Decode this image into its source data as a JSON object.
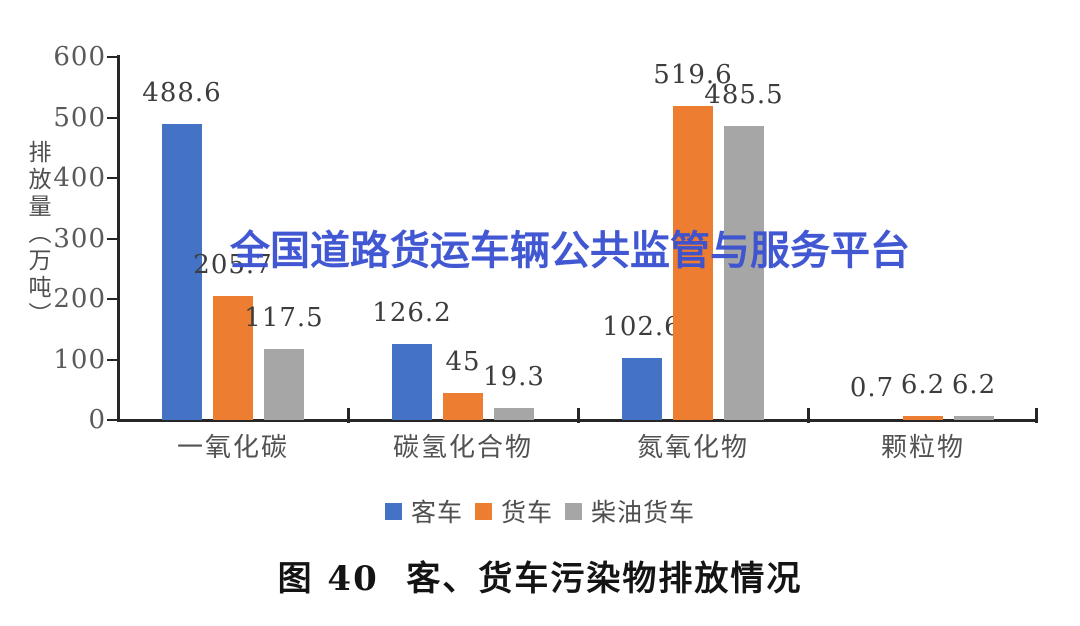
{
  "watermark": {
    "text": "全国道路货运车辆公共监管与服务平台",
    "color": "#3B52D1"
  },
  "caption": {
    "text": "图 40  客、货车污染物排放情况"
  },
  "chart_data": {
    "type": "bar",
    "title": "",
    "xlabel": "",
    "ylabel": "排放量（万吨）",
    "ylim": [
      0,
      600
    ],
    "yticks": [
      0,
      100,
      200,
      300,
      400,
      500,
      600
    ],
    "grid": false,
    "legend_position": "bottom",
    "categories": [
      "一氧化碳",
      "碳氢化合物",
      "氮氧化物",
      "颗粒物"
    ],
    "series": [
      {
        "name": "客车",
        "color": "#4472C4",
        "values": [
          488.6,
          126.2,
          102.6,
          0.7
        ],
        "labels": [
          "488.6",
          "126.2",
          "102.6",
          "0.7"
        ]
      },
      {
        "name": "货车",
        "color": "#ED7D31",
        "values": [
          205.7,
          45,
          519.6,
          6.2
        ],
        "labels": [
          "205.7",
          "45",
          "519.6",
          "6.2"
        ]
      },
      {
        "name": "柴油货车",
        "color": "#A6A6A6",
        "values": [
          117.5,
          19.3,
          485.5,
          6.2
        ],
        "labels": [
          "117.5",
          "19.3",
          "485.5",
          "6.2"
        ]
      }
    ],
    "axis_color": "#262626"
  }
}
